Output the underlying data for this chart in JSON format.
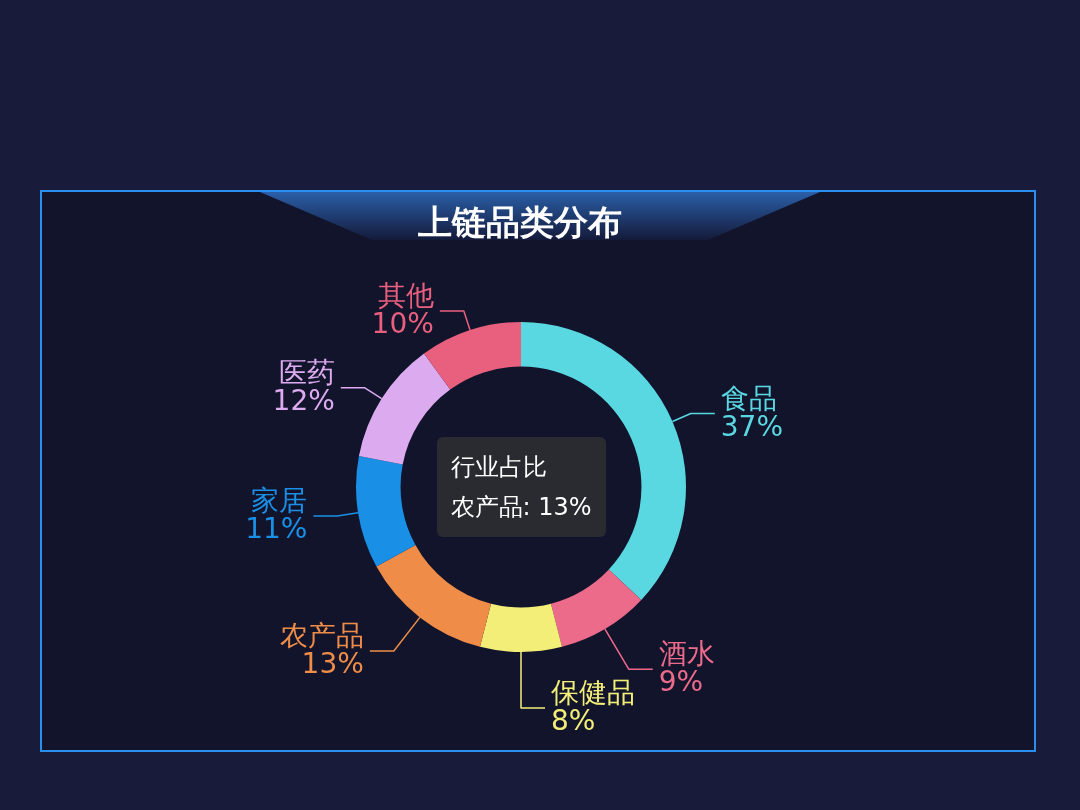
{
  "chart_data": {
    "type": "donut",
    "title": "上链品类分布",
    "categories": [
      "食品",
      "酒水",
      "保健品",
      "农产品",
      "家居",
      "医药",
      "其他"
    ],
    "values": [
      37,
      9,
      8,
      13,
      11,
      12,
      10
    ],
    "colors": [
      "#5ad8e2",
      "#ec6a8a",
      "#f2ee78",
      "#ee8c48",
      "#1a8fe6",
      "#dcaaee",
      "#e9607e"
    ],
    "value_labels": [
      "37%",
      "9%",
      "8%",
      "13%",
      "11%",
      "12%",
      "10%"
    ],
    "annotations": [
      "行业占比",
      "农产品: 13%"
    ]
  }
}
